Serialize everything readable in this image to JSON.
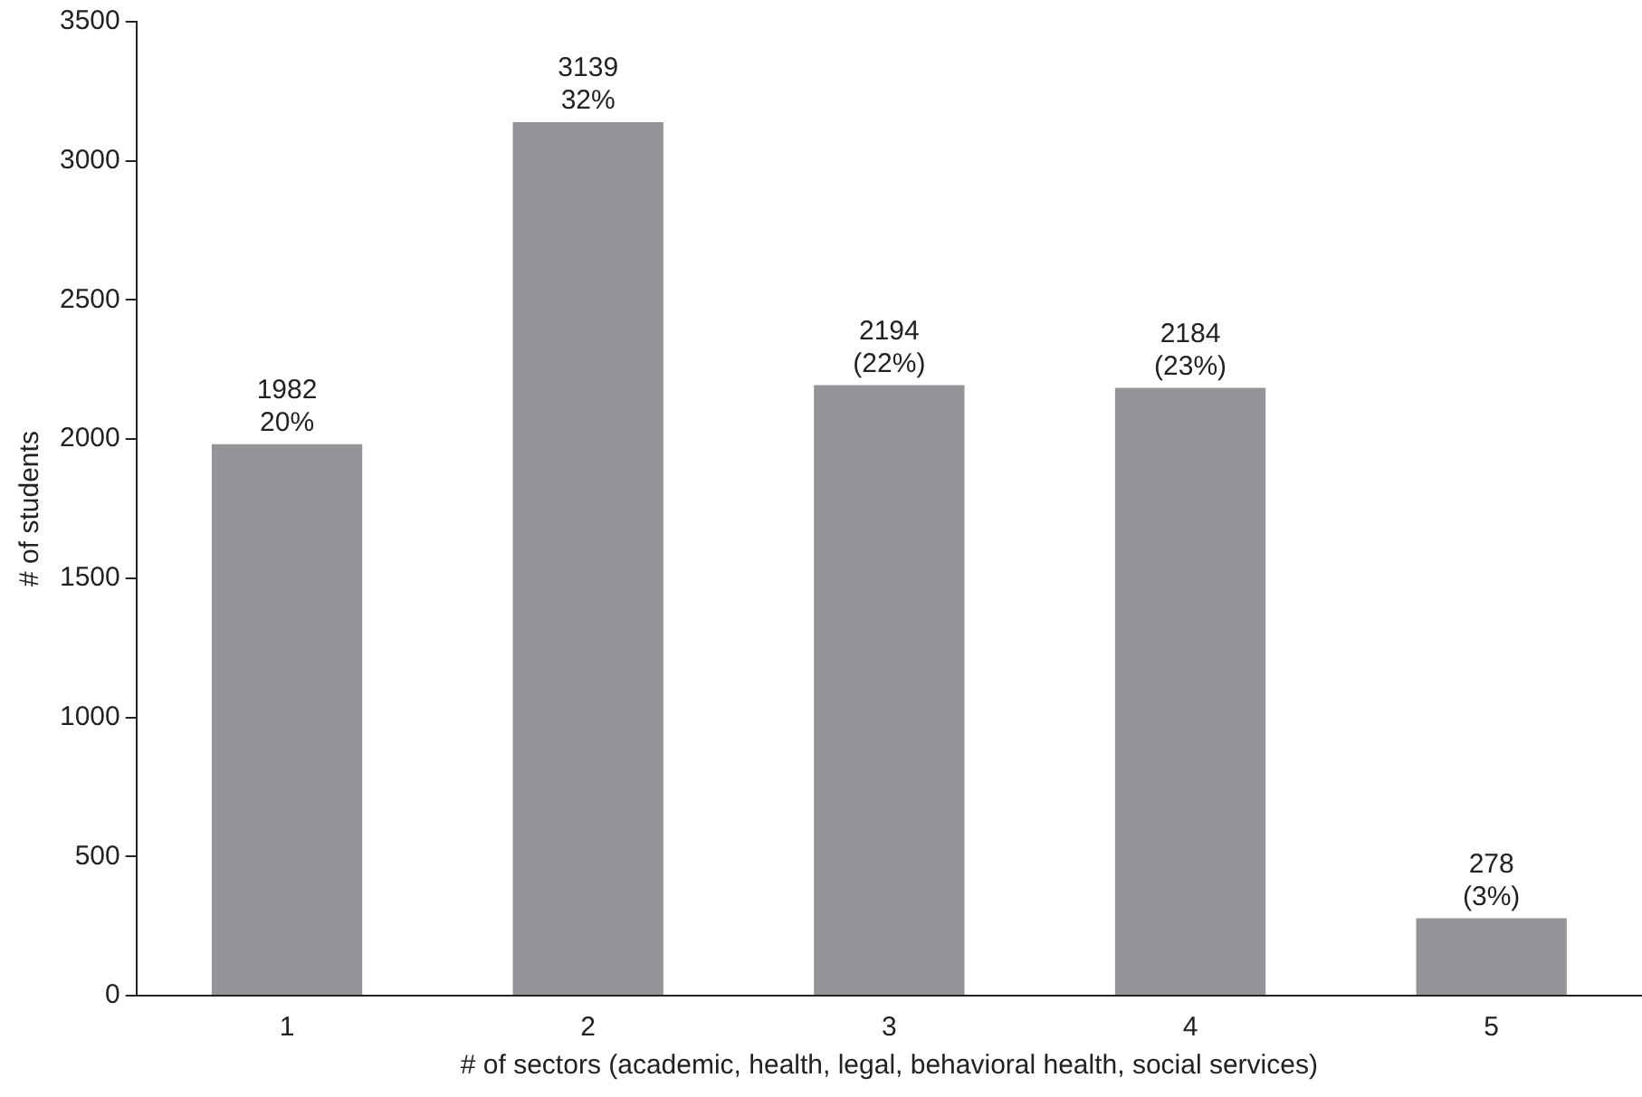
{
  "chart_data": {
    "type": "bar",
    "xlabel": "# of sectors (academic, health, legal, behavioral health, social services)",
    "ylabel": "# of students",
    "categories": [
      "1",
      "2",
      "3",
      "4",
      "5"
    ],
    "values": [
      1982,
      3139,
      2194,
      2184,
      278
    ],
    "value_labels": [
      "1982\n20%",
      "3139\n32%",
      "2194\n(22%)",
      "2184\n(23%)",
      "278\n(3%)"
    ],
    "color": "#939598",
    "ylim": [
      0,
      3500
    ],
    "yticks": [
      0,
      500,
      1000,
      1500,
      2000,
      2500,
      3000,
      3500
    ],
    "grid": false,
    "legend": false
  }
}
